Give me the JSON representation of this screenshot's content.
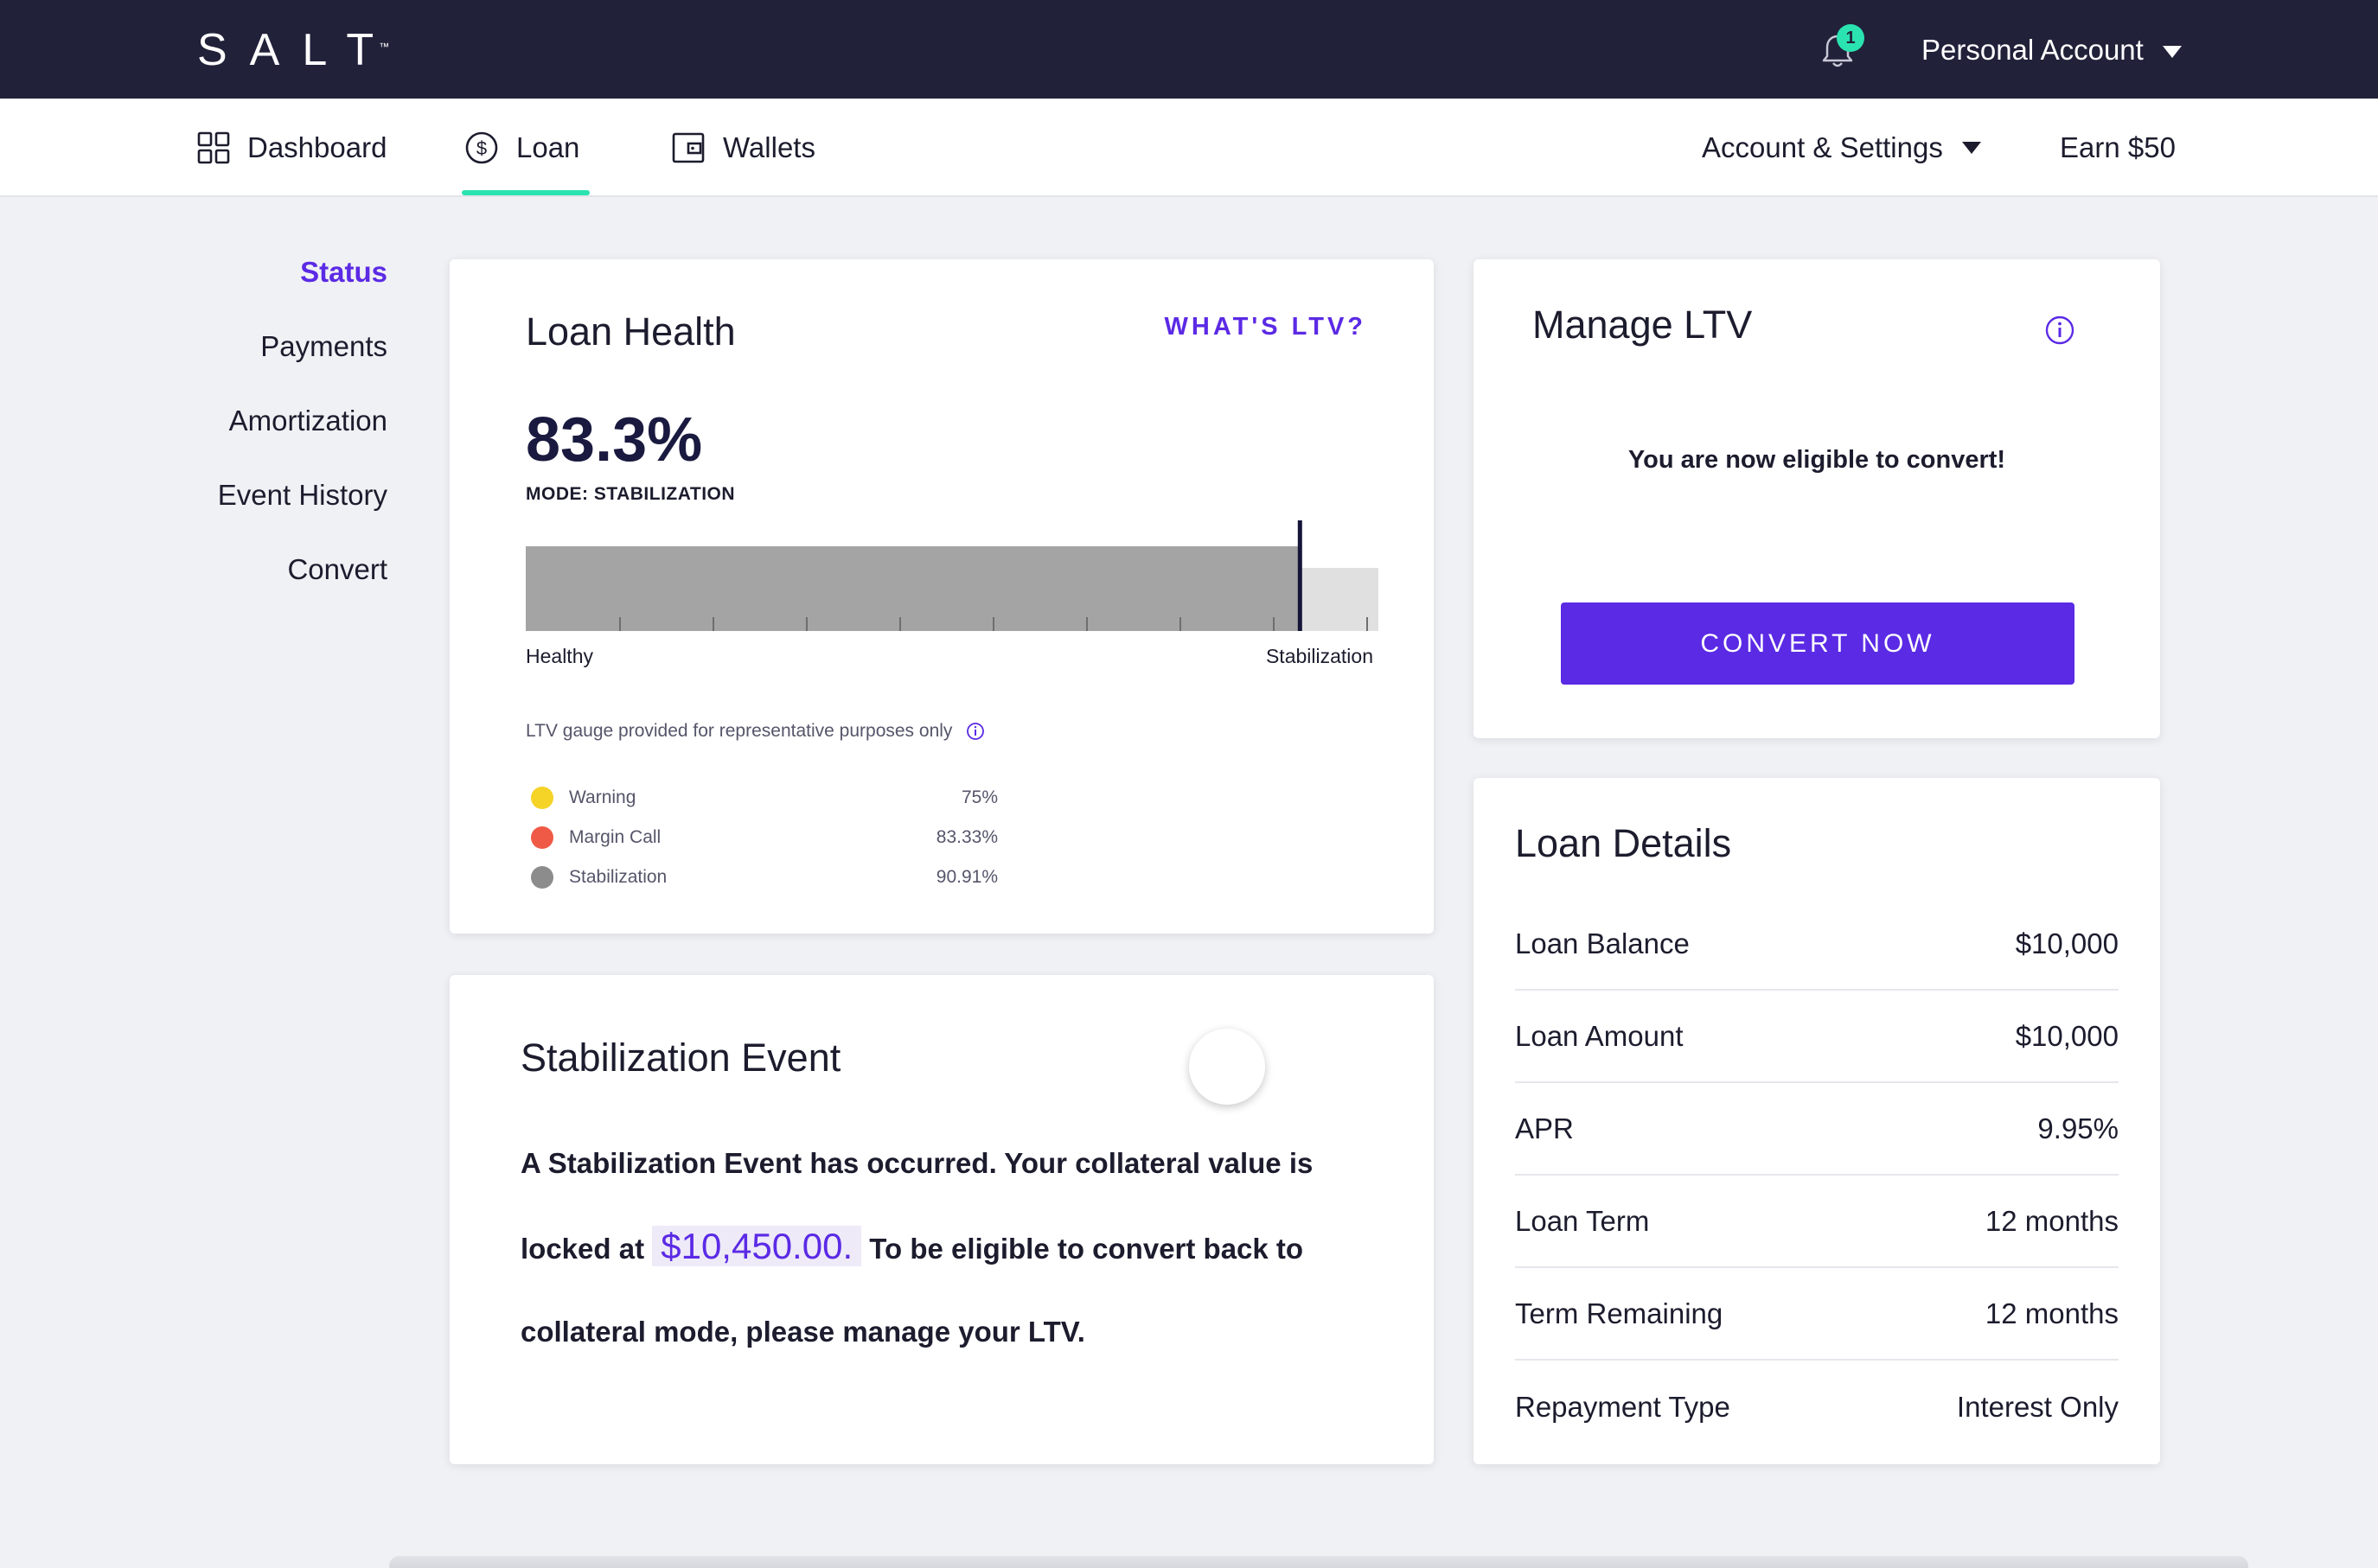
{
  "header": {
    "logo": "SALT",
    "logo_tm": "™",
    "notification_count": "1",
    "account_menu_label": "Personal Account"
  },
  "nav": {
    "items": [
      {
        "label": "Dashboard",
        "icon": "dashboard-grid-icon"
      },
      {
        "label": "Loan",
        "icon": "dollar-circle-icon",
        "active": true
      },
      {
        "label": "Wallets",
        "icon": "wallet-icon"
      }
    ],
    "settings_label": "Account & Settings",
    "earn_label": "Earn $50",
    "active_color": "#2be3b1"
  },
  "sidebar": {
    "items": [
      {
        "label": "Status",
        "active": true
      },
      {
        "label": "Payments"
      },
      {
        "label": "Amortization"
      },
      {
        "label": "Event History"
      },
      {
        "label": "Convert"
      }
    ]
  },
  "loan_health": {
    "title": "Loan Health",
    "whats_ltv": "WHAT'S LTV?",
    "ltv_value": "83.3%",
    "mode": "MODE: STABILIZATION",
    "gauge_marker_fraction": 0.908,
    "gauge_label_left": "Healthy",
    "gauge_label_right": "Stabilization",
    "note": "LTV gauge provided for representative purposes only",
    "legend": [
      {
        "name": "Warning",
        "value": "75%",
        "color": "#f5d327"
      },
      {
        "name": "Margin Call",
        "value": "83.33%",
        "color": "#ef5a47"
      },
      {
        "name": "Stabilization",
        "value": "90.91%",
        "color": "#8c8c8c"
      }
    ]
  },
  "stabilization_event": {
    "title": "Stabilization Event",
    "text_before": "A Stabilization Event has occurred. Your collateral value is locked at",
    "amount": "$10,450.00.",
    "text_after": "To be eligible to convert back to collateral mode, please manage your LTV."
  },
  "manage_ltv": {
    "title": "Manage LTV",
    "message": "You are now eligible to convert!",
    "button_label": "CONVERT NOW",
    "accent": "#5b2ae5"
  },
  "loan_details": {
    "title": "Loan Details",
    "rows": [
      {
        "label": "Loan Balance",
        "value": "$10,000"
      },
      {
        "label": "Loan Amount",
        "value": "$10,000"
      },
      {
        "label": "APR",
        "value": "9.95%"
      },
      {
        "label": "Loan Term",
        "value": "12 months"
      },
      {
        "label": "Term Remaining",
        "value": "12 months"
      },
      {
        "label": "Repayment Type",
        "value": "Interest Only"
      }
    ]
  }
}
